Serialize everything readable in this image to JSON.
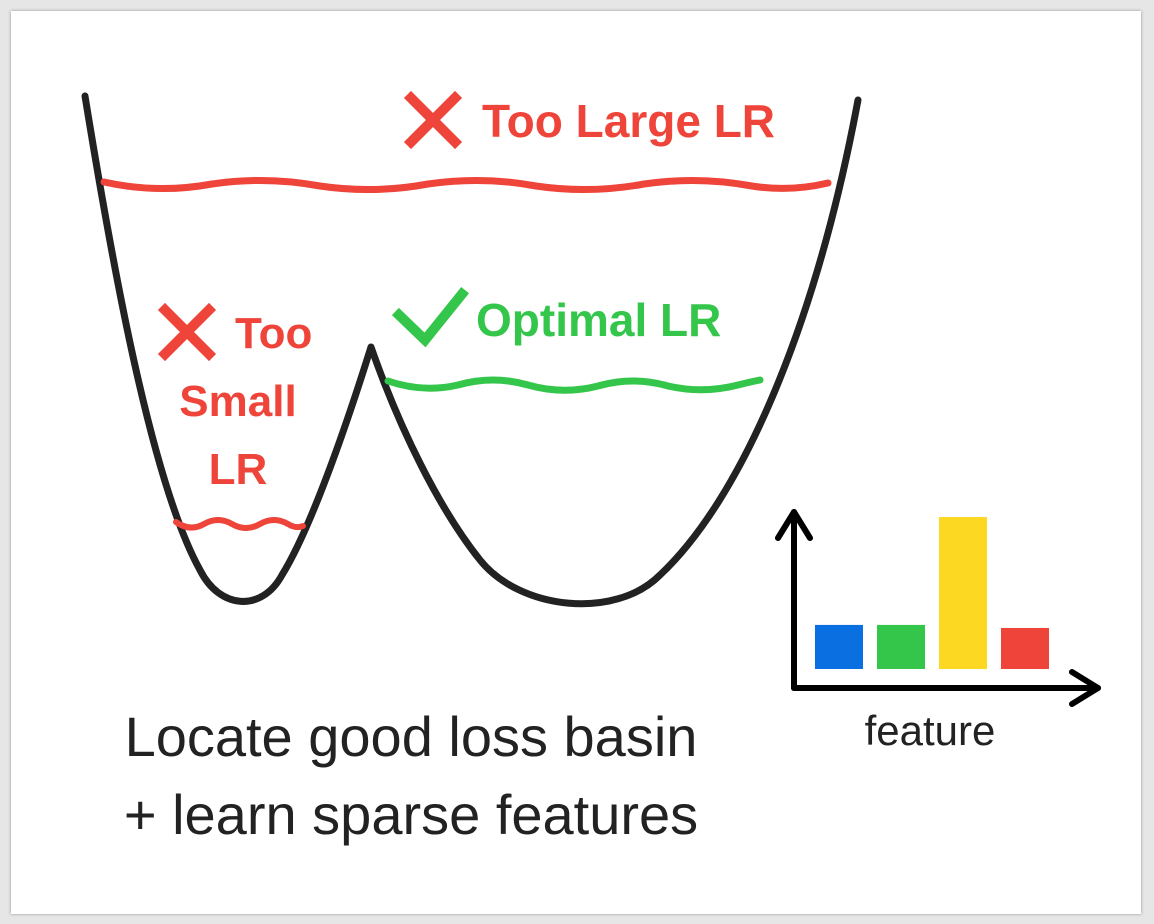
{
  "labels": {
    "too_large": "Too Large LR",
    "optimal": "Optimal LR",
    "too_small_line1": "Too",
    "too_small_line2": "Small",
    "too_small_line3": "LR"
  },
  "caption": {
    "line1": "Locate good loss basin",
    "line2": "+ learn sparse features"
  },
  "feature_chart": {
    "axis_label": "feature",
    "bars": [
      {
        "value": 0.29,
        "color": "#0a6fe0"
      },
      {
        "value": 0.29,
        "color": "#34c64a"
      },
      {
        "value": 1.0,
        "color": "#fdd823"
      },
      {
        "value": 0.27,
        "color": "#ee4439"
      }
    ]
  },
  "colors": {
    "bad": "#ee4439",
    "good": "#34c64a",
    "curve": "#222222"
  },
  "icons": {
    "too_large": "cross-icon",
    "too_small": "cross-icon",
    "optimal": "check-icon"
  }
}
